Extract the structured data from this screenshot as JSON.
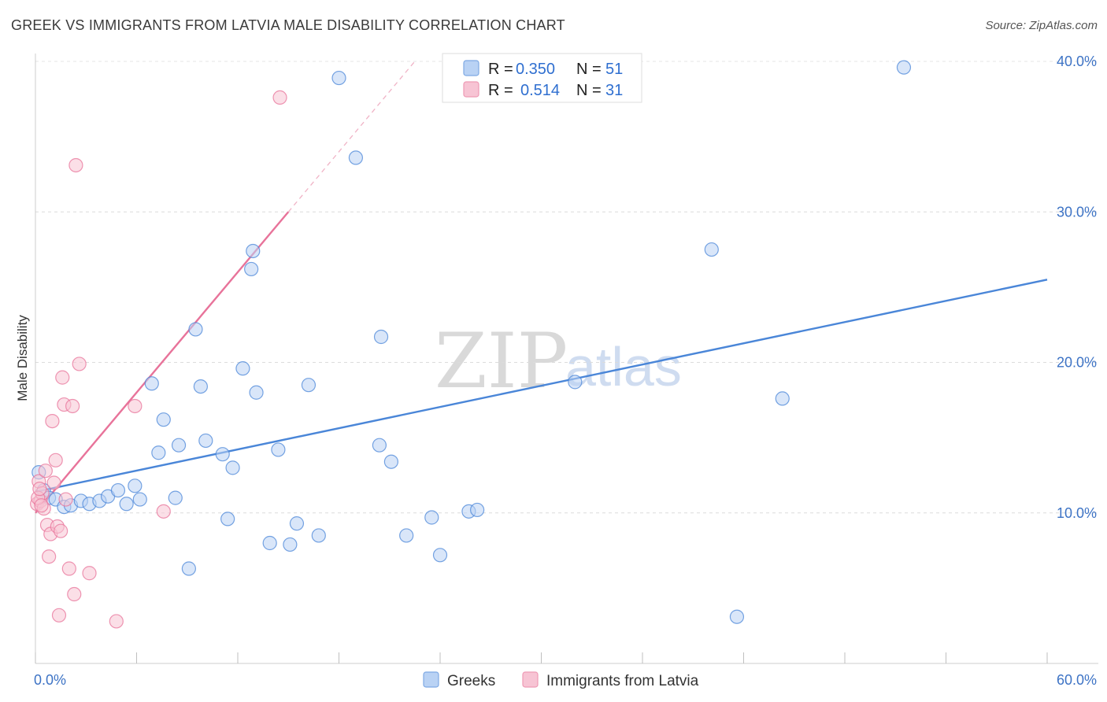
{
  "header": {
    "title": "GREEK VS IMMIGRANTS FROM LATVIA MALE DISABILITY CORRELATION CHART",
    "source": "Source: ZipAtlas.com"
  },
  "watermark": {
    "zip": "ZIP",
    "atlas": "atlas"
  },
  "legend": {
    "r_label": "R =",
    "n_label": "N =",
    "entries": [
      {
        "r": "0.350",
        "n": "51",
        "color": "#a9c8f2"
      },
      {
        "r": "0.514",
        "n": "31",
        "color": "#f6b9cc"
      }
    ]
  },
  "bottom_legend": [
    {
      "label": "Greeks",
      "color": "#a9c8f2"
    },
    {
      "label": "Immigrants from Latvia",
      "color": "#f6b9cc"
    }
  ],
  "chart_data": {
    "type": "scatter",
    "title": "GREEK VS IMMIGRANTS FROM LATVIA MALE DISABILITY CORRELATION CHART",
    "xlabel": "",
    "ylabel": "Male Disability",
    "xlim": [
      0,
      60
    ],
    "ylim": [
      0,
      40
    ],
    "x_tick_labels": [
      "0.0%",
      "60.0%"
    ],
    "y_ticks": [
      10,
      20,
      30,
      40
    ],
    "y_tick_labels": [
      "10.0%",
      "20.0%",
      "30.0%",
      "40.0%"
    ],
    "grid": true,
    "series": [
      {
        "name": "Greeks",
        "color": "#4a86d8",
        "fill": "#b9d2f4",
        "points": [
          [
            0.2,
            12.7
          ],
          [
            0.5,
            11.5
          ],
          [
            0.8,
            11.0
          ],
          [
            1.2,
            10.9
          ],
          [
            1.7,
            10.4
          ],
          [
            2.1,
            10.5
          ],
          [
            2.7,
            10.8
          ],
          [
            3.2,
            10.6
          ],
          [
            3.8,
            10.8
          ],
          [
            4.3,
            11.1
          ],
          [
            4.9,
            11.5
          ],
          [
            5.4,
            10.6
          ],
          [
            5.9,
            11.8
          ],
          [
            6.2,
            10.9
          ],
          [
            6.9,
            18.6
          ],
          [
            7.3,
            14.0
          ],
          [
            7.6,
            16.2
          ],
          [
            8.3,
            11.0
          ],
          [
            8.5,
            14.5
          ],
          [
            9.1,
            6.3
          ],
          [
            9.5,
            22.2
          ],
          [
            9.8,
            18.4
          ],
          [
            10.1,
            14.8
          ],
          [
            11.1,
            13.9
          ],
          [
            11.4,
            9.6
          ],
          [
            11.7,
            13.0
          ],
          [
            12.3,
            19.6
          ],
          [
            12.8,
            26.2
          ],
          [
            12.9,
            27.4
          ],
          [
            13.1,
            18.0
          ],
          [
            13.9,
            8.0
          ],
          [
            14.4,
            14.2
          ],
          [
            15.1,
            7.9
          ],
          [
            15.5,
            9.3
          ],
          [
            16.2,
            18.5
          ],
          [
            16.8,
            8.5
          ],
          [
            18.0,
            38.9
          ],
          [
            19.0,
            33.6
          ],
          [
            20.4,
            14.5
          ],
          [
            20.5,
            21.7
          ],
          [
            21.1,
            13.4
          ],
          [
            22.0,
            8.5
          ],
          [
            23.5,
            9.7
          ],
          [
            24.0,
            7.2
          ],
          [
            25.7,
            10.1
          ],
          [
            26.2,
            10.2
          ],
          [
            32.0,
            18.7
          ],
          [
            40.1,
            27.5
          ],
          [
            41.6,
            3.1
          ],
          [
            44.3,
            17.6
          ],
          [
            51.5,
            39.6
          ]
        ],
        "trend": {
          "x": [
            0,
            60
          ],
          "y": [
            11.4,
            25.5
          ],
          "style": "solid"
        }
      },
      {
        "name": "Immigrants from Latvia",
        "color": "#e8739a",
        "fill": "#f7c4d4",
        "points": [
          [
            0.1,
            10.6
          ],
          [
            0.2,
            12.1
          ],
          [
            0.3,
            10.8
          ],
          [
            0.4,
            11.3
          ],
          [
            0.5,
            10.3
          ],
          [
            0.6,
            12.8
          ],
          [
            0.7,
            9.2
          ],
          [
            0.8,
            7.1
          ],
          [
            0.9,
            8.6
          ],
          [
            1.0,
            16.1
          ],
          [
            1.1,
            12.0
          ],
          [
            1.2,
            13.5
          ],
          [
            1.3,
            9.1
          ],
          [
            1.4,
            3.2
          ],
          [
            1.5,
            8.8
          ],
          [
            1.6,
            19.0
          ],
          [
            1.7,
            17.2
          ],
          [
            1.8,
            10.9
          ],
          [
            2.0,
            6.3
          ],
          [
            2.2,
            17.1
          ],
          [
            2.3,
            4.6
          ],
          [
            2.4,
            33.1
          ],
          [
            2.6,
            19.9
          ],
          [
            3.2,
            6.0
          ],
          [
            4.8,
            2.8
          ],
          [
            5.9,
            17.1
          ],
          [
            7.6,
            10.1
          ],
          [
            14.5,
            37.6
          ],
          [
            0.15,
            11.0
          ],
          [
            0.35,
            10.5
          ],
          [
            0.25,
            11.6
          ]
        ],
        "trend": {
          "x": [
            0,
            15
          ],
          "y": [
            10.0,
            30.0
          ],
          "style": "solid",
          "extension": {
            "x": [
              15,
              22.5
            ],
            "y": [
              30.0,
              40.0
            ],
            "style": "dashed"
          }
        }
      }
    ]
  }
}
